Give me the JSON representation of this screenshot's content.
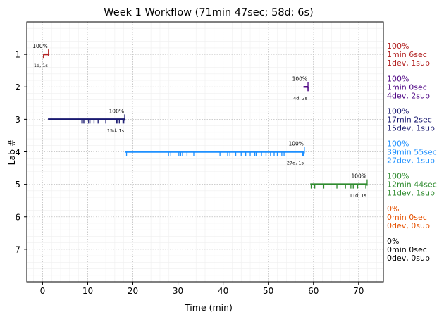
{
  "chart_data": {
    "type": "timeline",
    "title": "Week 1 Workflow (71min 47sec; 58d; 6s)",
    "xlabel": "Time (min)",
    "ylabel": "Lab #",
    "xlim": [
      -3.5,
      75.5
    ],
    "ylim": [
      8.0,
      0.0
    ],
    "xticks": [
      0,
      10,
      20,
      30,
      40,
      50,
      60,
      70
    ],
    "yticks": [
      1,
      2,
      3,
      4,
      5,
      6,
      7
    ],
    "grid": true,
    "minor_grid": true,
    "labs": [
      {
        "lab": 1,
        "color": "#b22222",
        "start": 0.2,
        "end": 1.3,
        "pct_label": "100%",
        "count_label": "1d, 1s",
        "events": [
          0.2
        ],
        "submit": 1.3,
        "summary": [
          "100%",
          "1min 6sec",
          "1dev, 1sub"
        ]
      },
      {
        "lab": 2,
        "color": "#4b0082",
        "start": 57.8,
        "end": 58.8,
        "pct_label": "100%",
        "count_label": "4d, 2s",
        "events": [
          58.8,
          58.8
        ],
        "submit": 58.8,
        "summary": [
          "100%",
          "1min 0sec",
          "4dev, 2sub"
        ]
      },
      {
        "lab": 3,
        "color": "#191970",
        "start": 1.2,
        "end": 18.2,
        "pct_label": "100%",
        "count_label": "15d, 1s",
        "events": [
          8.7,
          9.0,
          9.3,
          10.2,
          10.5,
          11.4,
          12.3,
          14.0,
          16.3,
          16.5,
          17.0,
          17.8,
          18.0
        ],
        "submit": 18.2,
        "summary": [
          "100%",
          "17min 2sec",
          "15dev, 1sub"
        ]
      },
      {
        "lab": 4,
        "color": "#1e90ff",
        "start": 18.2,
        "end": 58.0,
        "pct_label": "100%",
        "count_label": "27d, 1s",
        "events": [
          18.6,
          27.9,
          28.4,
          30.2,
          30.6,
          31.0,
          32.0,
          33.5,
          39.3,
          41.0,
          41.5,
          42.8,
          44.0,
          45.0,
          46.0,
          47.0,
          47.3,
          48.5,
          49.5,
          50.5,
          51.3,
          52.0,
          53.0,
          53.5,
          57.6,
          57.8
        ],
        "submit": 58.0,
        "summary": [
          "100%",
          "39min 55sec",
          "27dev, 1sub"
        ]
      },
      {
        "lab": 5,
        "color": "#2e8b2e",
        "start": 59.3,
        "end": 71.9,
        "pct_label": "100%",
        "count_label": "11d, 1s",
        "events": [
          59.5,
          60.3,
          62.3,
          65.2,
          67.1,
          68.3,
          68.6,
          68.9,
          69.8,
          71.6
        ],
        "submit": 71.9,
        "summary": [
          "100%",
          "12min 44sec",
          "11dev, 1sub"
        ]
      },
      {
        "lab": 6,
        "color": "#e65100",
        "summary": [
          "0%",
          "0min 0sec",
          "0dev, 0sub"
        ]
      },
      {
        "lab": 7,
        "color": "#000000",
        "summary": [
          "0%",
          "0min 0sec",
          "0dev, 0sub"
        ]
      }
    ]
  }
}
